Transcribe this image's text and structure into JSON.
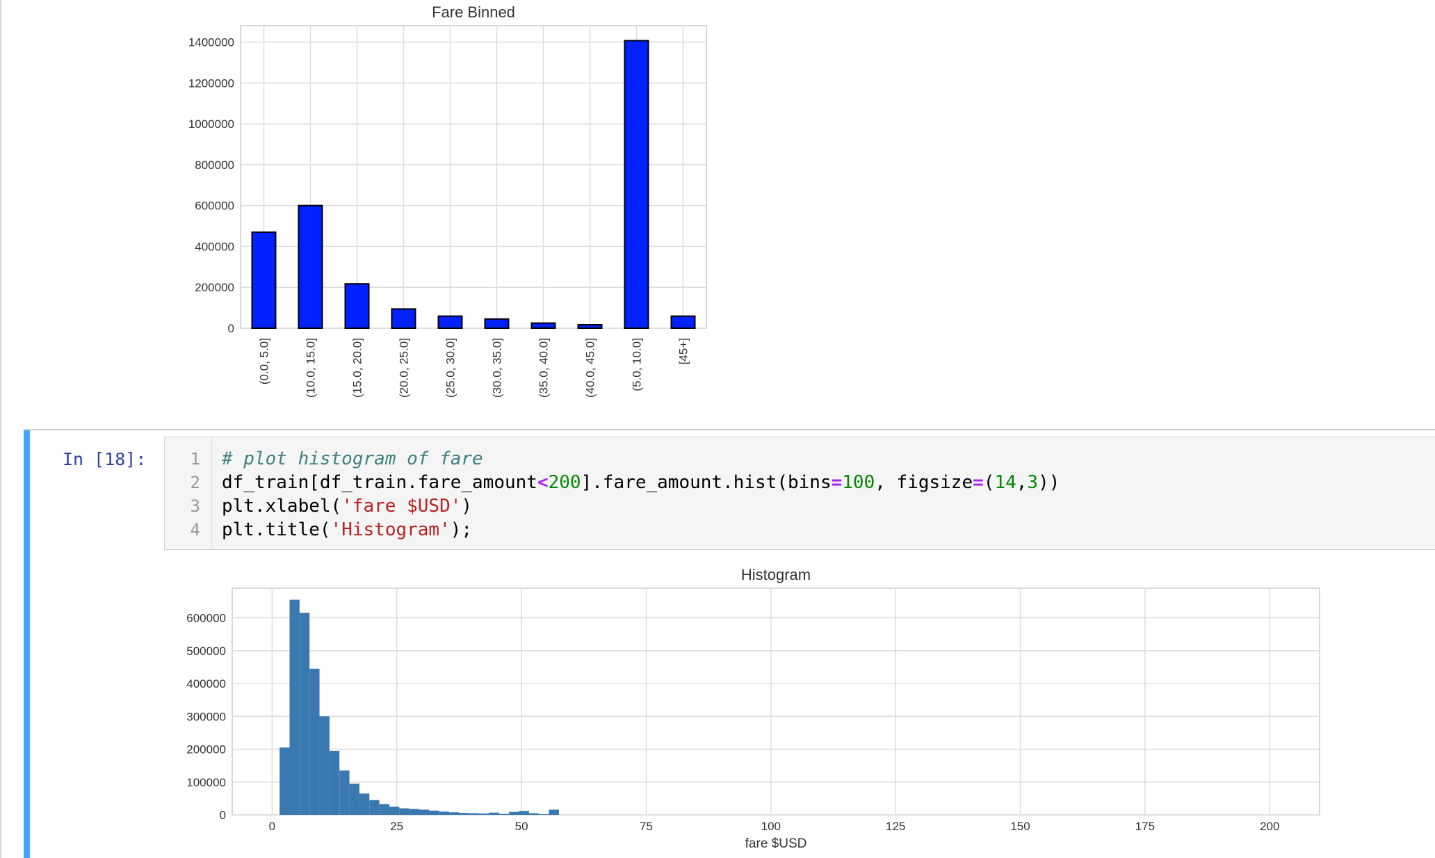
{
  "notebook": {
    "prompt": "In [18]:",
    "code_lines": [
      "# plot histogram of fare",
      "df_train[df_train.fare_amount<200].fare_amount.hist(bins=100, figsize=(14,3))",
      "plt.xlabel('fare $USD')",
      "plt.title('Histogram');"
    ]
  },
  "chart_data": [
    {
      "type": "bar",
      "title": "Fare Binned",
      "xlabel": "",
      "ylabel": "",
      "categories": [
        "(0.0, 5.0]",
        "(10.0, 15.0]",
        "(15.0, 20.0]",
        "(20.0, 25.0]",
        "(25.0, 30.0]",
        "(30.0, 35.0]",
        "(35.0, 40.0]",
        "(40.0, 45.0]",
        "(5.0, 10.0]",
        "[45+]"
      ],
      "values": [
        470000,
        600000,
        217000,
        94000,
        59000,
        45000,
        25000,
        17000,
        1407000,
        59000
      ],
      "ylim": [
        0,
        1480000
      ],
      "yticks": [
        0,
        200000,
        400000,
        600000,
        800000,
        1000000,
        1200000,
        1400000
      ],
      "bar_color": "#0022ff",
      "grid": true
    },
    {
      "type": "bar",
      "title": "Histogram",
      "xlabel": "fare $USD",
      "ylabel": "",
      "bins": [
        [
          2.5,
          205000
        ],
        [
          4.5,
          655000
        ],
        [
          6.5,
          615000
        ],
        [
          8.5,
          445000
        ],
        [
          10.5,
          300000
        ],
        [
          12.5,
          195000
        ],
        [
          14.5,
          135000
        ],
        [
          16.5,
          95000
        ],
        [
          18.5,
          65000
        ],
        [
          20.5,
          45000
        ],
        [
          22.5,
          33000
        ],
        [
          24.5,
          25000
        ],
        [
          26.5,
          20000
        ],
        [
          28.5,
          18000
        ],
        [
          30.5,
          16000
        ],
        [
          32.5,
          13000
        ],
        [
          34.5,
          10000
        ],
        [
          36.5,
          8000
        ],
        [
          38.5,
          6000
        ],
        [
          40.5,
          5000
        ],
        [
          42.5,
          4000
        ],
        [
          44.5,
          7000
        ],
        [
          46.5,
          3000
        ],
        [
          48.5,
          9000
        ],
        [
          50.5,
          12000
        ],
        [
          52.5,
          5000
        ],
        [
          54.5,
          2000
        ],
        [
          56.5,
          16000
        ]
      ],
      "bin_width": 2,
      "xlim": [
        -8,
        210
      ],
      "ylim": [
        0,
        690000
      ],
      "xticks": [
        0,
        25,
        50,
        75,
        100,
        125,
        150,
        175,
        200
      ],
      "yticks": [
        0,
        100000,
        200000,
        300000,
        400000,
        500000,
        600000
      ],
      "bar_color": "#3a78b0",
      "grid": true
    }
  ]
}
